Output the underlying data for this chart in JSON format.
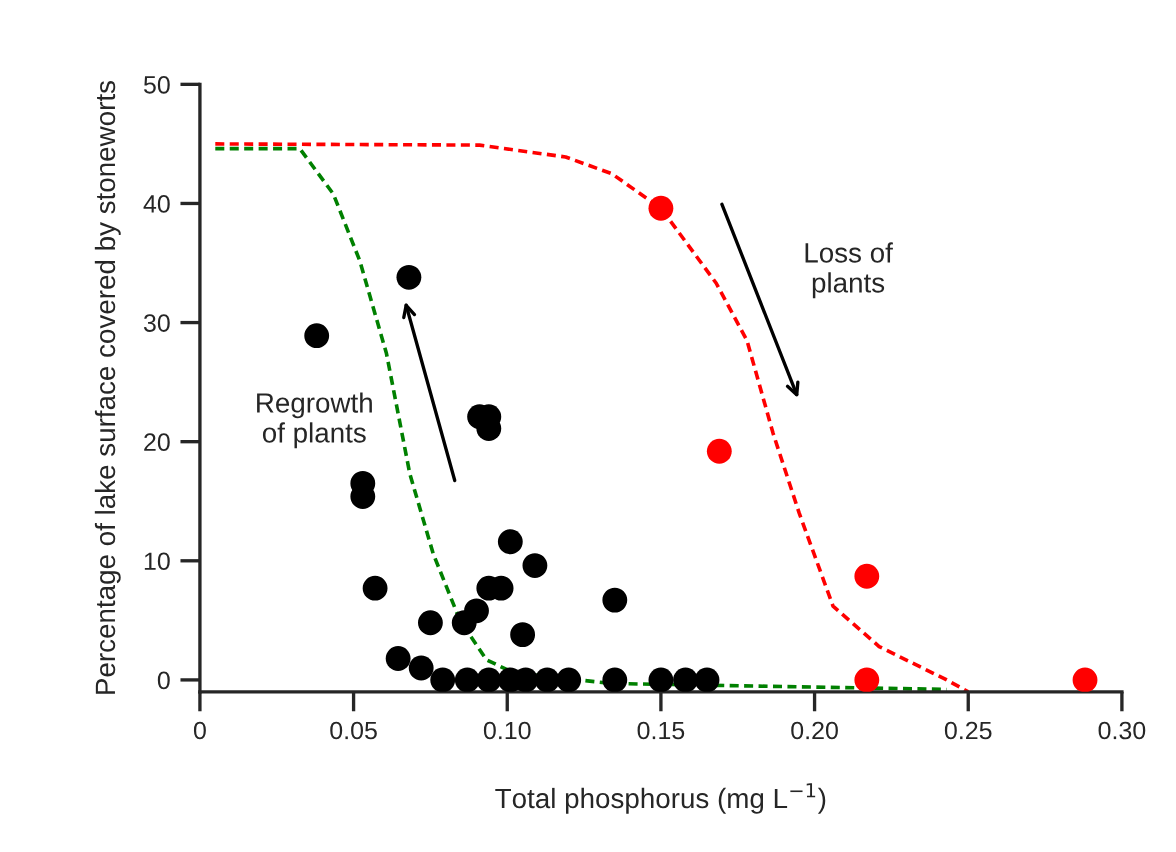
{
  "chart_data": {
    "type": "scatter",
    "xlabel": "Total phosphorus (mg L$^{−1}$)",
    "ylabel": "Percentage of lake surface covered by stoneworts",
    "xlim": [
      0,
      0.3
    ],
    "ylim": [
      -1,
      50
    ],
    "xticks": [
      0,
      {
        "value": 0.05,
        "label": "0.05"
      },
      {
        "value": 0.1,
        "label": "0.10"
      },
      {
        "value": 0.15,
        "label": "0.15"
      },
      {
        "value": 0.2,
        "label": "0.20"
      },
      {
        "value": 0.25,
        "label": "0.25"
      },
      {
        "value": 0.3,
        "label": "0.30"
      }
    ],
    "yticks": [
      0,
      10,
      20,
      30,
      40,
      50
    ],
    "grid": false,
    "legend": false,
    "marker": "circle",
    "series": [
      {
        "color": "#000000",
        "x": [
          0.038,
          0.068,
          0.053,
          0.053,
          0.057,
          0.091,
          0.094,
          0.094,
          0.101,
          0.109,
          0.094,
          0.098,
          0.09,
          0.086,
          0.075,
          0.105,
          0.135,
          0.0645,
          0.072,
          0.079,
          0.087,
          0.094,
          0.101,
          0.106,
          0.113,
          0.12,
          0.135,
          0.15,
          0.158,
          0.165
        ],
        "values": [
          28.9,
          33.8,
          16.5,
          15.4,
          7.7,
          22.1,
          22.1,
          21.1,
          11.6,
          9.6,
          7.7,
          7.7,
          5.8,
          4.8,
          4.8,
          3.8,
          6.7,
          1.8,
          1.0,
          0,
          0,
          0,
          0,
          0,
          0,
          0,
          0,
          0,
          0,
          0
        ]
      },
      {
        "color": "#ff0000",
        "x": [
          0.15,
          0.169,
          0.217,
          0.217,
          0.288
        ],
        "values": [
          39.6,
          19.2,
          8.7,
          0,
          0
        ]
      },
      {
        "type": "line",
        "color": "#ff0000",
        "line_style": "dashed",
        "marker": "none",
        "x": [
          0.005,
          0.091,
          0.119,
          0.134,
          0.15,
          0.168,
          0.178,
          0.1865,
          0.195,
          0.206,
          0.221,
          0.243,
          0.25
        ],
        "values": [
          45.0,
          44.9,
          43.9,
          42.5,
          39.6,
          33.3,
          28.5,
          20.7,
          14.0,
          6.2,
          2.8,
          0,
          -1
        ]
      },
      {
        "type": "line",
        "color": "#008000",
        "line_style": "dashed",
        "marker": "none",
        "x": [
          0.005,
          0.0325,
          0.0434,
          0.052,
          0.0607,
          0.0683,
          0.0759,
          0.0846,
          0.0932,
          0.102,
          0.134,
          0.243
        ],
        "values": [
          44.6,
          44.6,
          40.8,
          35.2,
          27.4,
          17.3,
          10.6,
          5.0,
          1.7,
          0.6,
          -0.3,
          -0.8
        ]
      }
    ],
    "annotations": [
      "Regrowth\nof plants",
      "Loss of\nplants"
    ]
  }
}
